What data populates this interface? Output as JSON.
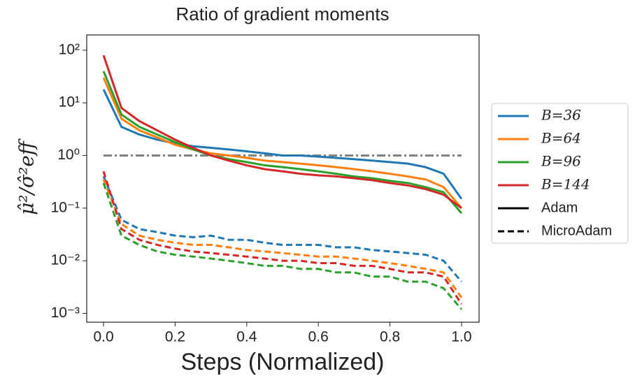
{
  "chart_data": {
    "type": "line",
    "title": "Ratio of gradient moments",
    "xlabel": "Steps (Normalized)",
    "ylabel": "μ̂²/σ̂²eff",
    "log_y": true,
    "x": [
      0,
      0.05,
      0.1,
      0.15,
      0.2,
      0.25,
      0.3,
      0.35,
      0.4,
      0.45,
      0.5,
      0.55,
      0.6,
      0.65,
      0.7,
      0.75,
      0.8,
      0.85,
      0.9,
      0.95,
      1
    ],
    "xlim": [
      -0.047,
      1.049
    ],
    "xticks": [
      {
        "value": 0,
        "label": "0.0"
      },
      0.2,
      0.4,
      0.6,
      0.8,
      {
        "value": 1,
        "label": "1.0"
      }
    ],
    "ylim": [
      0.00068,
      195
    ],
    "yticks": [
      {
        "value": 0.001,
        "label": "10⁻³"
      },
      {
        "value": 0.01,
        "label": "10⁻²"
      },
      {
        "value": 0.1,
        "label": "10⁻¹"
      },
      {
        "value": 1,
        "label": "10⁰"
      },
      {
        "value": 10,
        "label": "10¹"
      },
      {
        "value": 100,
        "label": "10²"
      }
    ],
    "reference": {
      "value": 1,
      "color": "#808080"
    },
    "groups": [
      {
        "name": "B=36",
        "color": "#1f77b4"
      },
      {
        "name": "B=64",
        "color": "#ff7f0e"
      },
      {
        "name": "B=96",
        "color": "#2ca02c"
      },
      {
        "name": "B=144",
        "color": "#d62728"
      }
    ],
    "styles": [
      {
        "name": "Adam",
        "dash": "solid"
      },
      {
        "name": "MicroAdam",
        "dash": "dashed"
      }
    ],
    "series": [
      {
        "group": 0,
        "style": 0,
        "values": [
          18,
          3.5,
          2.5,
          2,
          1.7,
          1.5,
          1.4,
          1.3,
          1.2,
          1.1,
          1.0,
          1.0,
          0.95,
          0.9,
          0.85,
          0.8,
          0.75,
          0.7,
          0.6,
          0.45,
          0.15
        ]
      },
      {
        "group": 0,
        "style": 1,
        "values": [
          0.4,
          0.06,
          0.04,
          0.035,
          0.03,
          0.028,
          0.03,
          0.025,
          0.025,
          0.022,
          0.02,
          0.02,
          0.02,
          0.018,
          0.018,
          0.016,
          0.015,
          0.014,
          0.013,
          0.01,
          0.004
        ]
      },
      {
        "group": 1,
        "style": 0,
        "values": [
          30,
          5,
          3,
          2.2,
          1.6,
          1.3,
          1.1,
          1.0,
          0.9,
          0.8,
          0.75,
          0.7,
          0.65,
          0.6,
          0.55,
          0.5,
          0.45,
          0.4,
          0.35,
          0.25,
          0.1
        ]
      },
      {
        "group": 1,
        "style": 1,
        "values": [
          0.35,
          0.05,
          0.03,
          0.025,
          0.022,
          0.02,
          0.02,
          0.018,
          0.016,
          0.015,
          0.014,
          0.013,
          0.012,
          0.012,
          0.011,
          0.01,
          0.009,
          0.008,
          0.007,
          0.006,
          0.002
        ]
      },
      {
        "group": 2,
        "style": 0,
        "values": [
          40,
          6,
          3.5,
          2.5,
          1.8,
          1.3,
          1.0,
          0.85,
          0.75,
          0.65,
          0.6,
          0.55,
          0.5,
          0.45,
          0.4,
          0.37,
          0.33,
          0.3,
          0.25,
          0.2,
          0.08
        ]
      },
      {
        "group": 2,
        "style": 1,
        "values": [
          0.3,
          0.03,
          0.02,
          0.015,
          0.013,
          0.012,
          0.011,
          0.01,
          0.009,
          0.008,
          0.008,
          0.007,
          0.007,
          0.006,
          0.006,
          0.005,
          0.005,
          0.004,
          0.004,
          0.003,
          0.0012
        ]
      },
      {
        "group": 3,
        "style": 0,
        "values": [
          80,
          8,
          4.5,
          3,
          2,
          1.4,
          1.0,
          0.8,
          0.65,
          0.55,
          0.5,
          0.45,
          0.42,
          0.4,
          0.37,
          0.34,
          0.3,
          0.27,
          0.23,
          0.18,
          0.1
        ]
      },
      {
        "group": 3,
        "style": 1,
        "values": [
          0.5,
          0.04,
          0.025,
          0.02,
          0.017,
          0.015,
          0.014,
          0.013,
          0.012,
          0.011,
          0.01,
          0.01,
          0.009,
          0.009,
          0.008,
          0.008,
          0.007,
          0.006,
          0.006,
          0.005,
          0.0015
        ]
      }
    ]
  }
}
